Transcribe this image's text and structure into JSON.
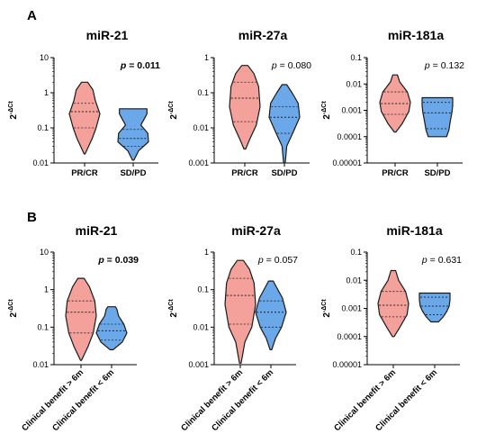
{
  "colors": {
    "red_fill": "#f4a09b",
    "red_stroke": "#1a1a1a",
    "blue_fill": "#6aa8ea",
    "blue_stroke": "#1a1a1a"
  },
  "panel_letters": [
    "A",
    "B"
  ],
  "chart_data": [
    {
      "type": "violin",
      "panel": "A",
      "title": "miR-21",
      "ylabel": "2-ΔCt",
      "yscale": "log",
      "ylim": [
        0.01,
        10
      ],
      "yticks": [
        0.01,
        0.1,
        1,
        10
      ],
      "ytick_labels": [
        "0.01",
        "0.1",
        "1",
        "10"
      ],
      "categories": [
        "PR/CR",
        "SD/PD"
      ],
      "category_rotation": 0,
      "pvalue_text": "p = 0.011",
      "pvalue_bold": true,
      "series": [
        {
          "category": "PR/CR",
          "color": "red",
          "min": 0.018,
          "max": 2.0,
          "q1": 0.1,
          "median": 0.29,
          "q3": 0.5,
          "shape": [
            [
              0.018,
              0.03
            ],
            [
              0.05,
              0.5
            ],
            [
              0.1,
              0.75
            ],
            [
              0.25,
              1.0
            ],
            [
              0.6,
              0.7
            ],
            [
              1.2,
              0.55
            ],
            [
              2.0,
              0.2
            ]
          ]
        },
        {
          "category": "SD/PD",
          "color": "blue",
          "min": 0.012,
          "max": 0.35,
          "q1": 0.03,
          "median": 0.05,
          "q3": 0.09,
          "shape": [
            [
              0.012,
              0.05
            ],
            [
              0.022,
              0.35
            ],
            [
              0.04,
              1.0
            ],
            [
              0.07,
              0.95
            ],
            [
              0.12,
              0.5
            ],
            [
              0.25,
              0.9
            ],
            [
              0.35,
              0.9
            ]
          ]
        }
      ]
    },
    {
      "type": "violin",
      "panel": "A",
      "title": "miR-27a",
      "ylabel": "2-ΔCt",
      "yscale": "log",
      "ylim": [
        0.001,
        1
      ],
      "yticks": [
        0.001,
        0.01,
        0.1,
        1
      ],
      "ytick_labels": [
        "0.001",
        "0.01",
        "0.1",
        "1"
      ],
      "categories": [
        "PR/CR",
        "SD/PD"
      ],
      "category_rotation": 0,
      "pvalue_text": "p = 0.080",
      "pvalue_bold": false,
      "series": [
        {
          "category": "PR/CR",
          "color": "red",
          "min": 0.0025,
          "max": 0.6,
          "q1": 0.015,
          "median": 0.07,
          "q3": 0.2,
          "shape": [
            [
              0.0025,
              0.05
            ],
            [
              0.005,
              0.35
            ],
            [
              0.012,
              0.75
            ],
            [
              0.04,
              1.0
            ],
            [
              0.15,
              0.9
            ],
            [
              0.35,
              0.6
            ],
            [
              0.6,
              0.2
            ]
          ]
        },
        {
          "category": "SD/PD",
          "color": "blue",
          "min": 0.001,
          "max": 0.17,
          "q1": 0.007,
          "median": 0.02,
          "q3": 0.04,
          "shape": [
            [
              0.001,
              0.05
            ],
            [
              0.003,
              0.15
            ],
            [
              0.008,
              0.6
            ],
            [
              0.02,
              1.0
            ],
            [
              0.05,
              0.9
            ],
            [
              0.1,
              0.5
            ],
            [
              0.17,
              0.15
            ]
          ]
        }
      ]
    },
    {
      "type": "violin",
      "panel": "A",
      "title": "miR-181a",
      "ylabel": "2-ΔCt",
      "yscale": "log",
      "ylim": [
        1e-05,
        0.1
      ],
      "yticks": [
        1e-05,
        0.0001,
        0.001,
        0.01,
        0.1
      ],
      "ytick_labels": [
        "0.00001",
        "0.0001",
        "0.001",
        "0.01",
        "0.1"
      ],
      "categories": [
        "PR/CR",
        "SD/PD"
      ],
      "category_rotation": 0,
      "pvalue_text": "p = 0.132",
      "pvalue_bold": false,
      "series": [
        {
          "category": "PR/CR",
          "color": "red",
          "min": 0.00015,
          "max": 0.022,
          "q1": 0.0007,
          "median": 0.0018,
          "q3": 0.005,
          "shape": [
            [
              0.00015,
              0.05
            ],
            [
              0.0003,
              0.45
            ],
            [
              0.0009,
              0.9
            ],
            [
              0.002,
              1.0
            ],
            [
              0.005,
              0.8
            ],
            [
              0.012,
              0.3
            ],
            [
              0.022,
              0.15
            ]
          ]
        },
        {
          "category": "SD/PD",
          "color": "blue",
          "min": 0.0001,
          "max": 0.003,
          "q1": 0.0002,
          "median": 0.0008,
          "q3": 0.002,
          "shape": [
            [
              0.0001,
              0.6
            ],
            [
              0.00018,
              0.75
            ],
            [
              0.0004,
              0.85
            ],
            [
              0.0008,
              0.95
            ],
            [
              0.0015,
              1.0
            ],
            [
              0.0025,
              1.0
            ],
            [
              0.003,
              1.0
            ]
          ]
        }
      ]
    },
    {
      "type": "violin",
      "panel": "B",
      "title": "miR-21",
      "ylabel": "2-ΔCt",
      "yscale": "log",
      "ylim": [
        0.01,
        10
      ],
      "yticks": [
        0.01,
        0.1,
        1,
        10
      ],
      "ytick_labels": [
        "0.01",
        "0.1",
        "1",
        "10"
      ],
      "categories": [
        "Clinical benefit > 6m",
        "Clinical benefit < 6m"
      ],
      "category_rotation": -45,
      "pvalue_text": "p = 0.039",
      "pvalue_bold": true,
      "series": [
        {
          "category": "Clinical benefit > 6m",
          "color": "red",
          "min": 0.013,
          "max": 2.0,
          "q1": 0.07,
          "median": 0.25,
          "q3": 0.5,
          "shape": [
            [
              0.013,
              0.03
            ],
            [
              0.03,
              0.45
            ],
            [
              0.07,
              0.8
            ],
            [
              0.2,
              1.0
            ],
            [
              0.5,
              0.9
            ],
            [
              1.2,
              0.55
            ],
            [
              2.0,
              0.2
            ]
          ]
        },
        {
          "category": "Clinical benefit < 6m",
          "color": "blue",
          "min": 0.025,
          "max": 0.35,
          "q1": 0.045,
          "median": 0.08,
          "q3": 0.12,
          "shape": [
            [
              0.025,
              0.1
            ],
            [
              0.04,
              0.7
            ],
            [
              0.07,
              1.0
            ],
            [
              0.12,
              0.8
            ],
            [
              0.2,
              0.45
            ],
            [
              0.3,
              0.35
            ],
            [
              0.35,
              0.25
            ]
          ]
        }
      ]
    },
    {
      "type": "violin",
      "panel": "B",
      "title": "miR-27a",
      "ylabel": "2-ΔCt",
      "yscale": "log",
      "ylim": [
        0.001,
        1
      ],
      "yticks": [
        0.001,
        0.01,
        0.1,
        1
      ],
      "ytick_labels": [
        "0.001",
        "0.01",
        "0.1",
        "1"
      ],
      "categories": [
        "Clinical benefit > 6m",
        "Clinical benefit < 6m"
      ],
      "category_rotation": -45,
      "pvalue_text": "p = 0.057",
      "pvalue_bold": false,
      "series": [
        {
          "category": "Clinical benefit > 6m",
          "color": "red",
          "min": 0.0011,
          "max": 0.6,
          "q1": 0.012,
          "median": 0.07,
          "q3": 0.2,
          "shape": [
            [
              0.0011,
              0.05
            ],
            [
              0.004,
              0.3
            ],
            [
              0.01,
              0.75
            ],
            [
              0.04,
              1.0
            ],
            [
              0.15,
              0.9
            ],
            [
              0.35,
              0.6
            ],
            [
              0.6,
              0.2
            ]
          ]
        },
        {
          "category": "Clinical benefit < 6m",
          "color": "blue",
          "min": 0.0025,
          "max": 0.17,
          "q1": 0.01,
          "median": 0.025,
          "q3": 0.05,
          "shape": [
            [
              0.0025,
              0.05
            ],
            [
              0.005,
              0.3
            ],
            [
              0.01,
              0.7
            ],
            [
              0.025,
              1.0
            ],
            [
              0.06,
              0.75
            ],
            [
              0.12,
              0.35
            ],
            [
              0.17,
              0.15
            ]
          ]
        }
      ]
    },
    {
      "type": "violin",
      "panel": "B",
      "title": "miR-181a",
      "ylabel": "2-ΔCt",
      "yscale": "log",
      "ylim": [
        1e-05,
        0.1
      ],
      "yticks": [
        1e-05,
        0.0001,
        0.001,
        0.01,
        0.1
      ],
      "ytick_labels": [
        "0.00001",
        "0.0001",
        "0.001",
        "0.01",
        "0.1"
      ],
      "categories": [
        "Clinical benefit > 6m",
        "Clinical benefit < 6m"
      ],
      "category_rotation": -45,
      "pvalue_text": "p = 0.631",
      "pvalue_bold": false,
      "series": [
        {
          "category": "Clinical benefit > 6m",
          "color": "red",
          "min": 0.0001,
          "max": 0.022,
          "q1": 0.0005,
          "median": 0.0013,
          "q3": 0.004,
          "shape": [
            [
              0.0001,
              0.05
            ],
            [
              0.0002,
              0.4
            ],
            [
              0.0006,
              0.9
            ],
            [
              0.0015,
              1.0
            ],
            [
              0.004,
              0.8
            ],
            [
              0.01,
              0.35
            ],
            [
              0.022,
              0.15
            ]
          ]
        },
        {
          "category": "Clinical benefit < 6m",
          "color": "blue",
          "min": 0.00033,
          "max": 0.0035,
          "q1": 0.0006,
          "median": 0.0012,
          "q3": 0.0025,
          "shape": [
            [
              0.00033,
              0.25
            ],
            [
              0.0005,
              0.55
            ],
            [
              0.0008,
              0.8
            ],
            [
              0.0012,
              0.95
            ],
            [
              0.002,
              1.0
            ],
            [
              0.003,
              1.0
            ],
            [
              0.0035,
              1.0
            ]
          ]
        }
      ]
    }
  ]
}
